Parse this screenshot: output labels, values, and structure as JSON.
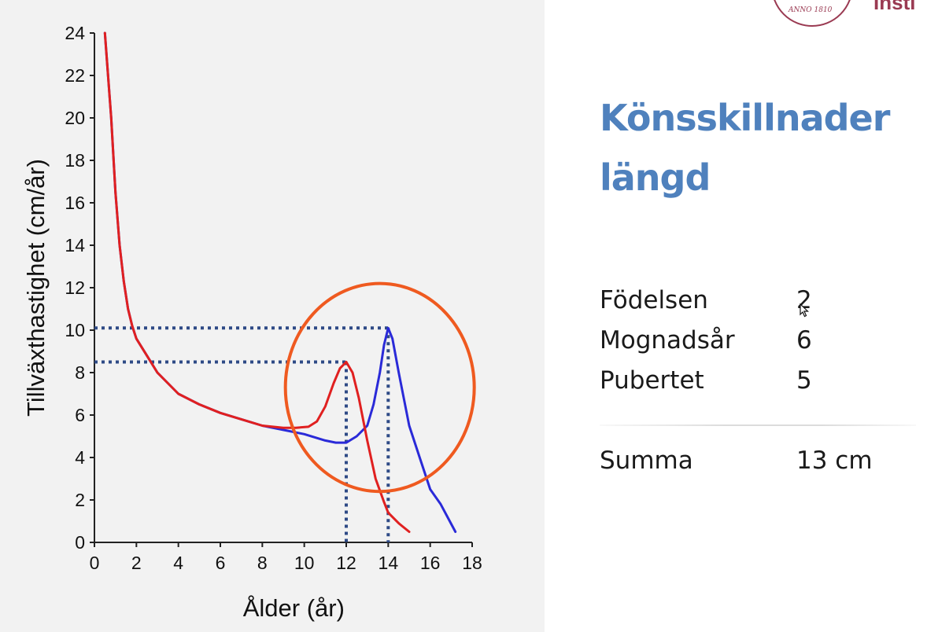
{
  "chart_data": {
    "type": "line",
    "title": "",
    "xlabel": "Ålder (år)",
    "ylabel": "Tillväxthastighet (cm/år)",
    "xlim": [
      0,
      18
    ],
    "ylim": [
      0,
      24
    ],
    "xticks": [
      "0",
      "2",
      "4",
      "6",
      "8",
      "10",
      "12",
      "14",
      "16",
      "18"
    ],
    "yticks": [
      "0",
      "2",
      "4",
      "6",
      "8",
      "10",
      "12",
      "14",
      "16",
      "18",
      "20",
      "22",
      "24"
    ],
    "grid": false,
    "legend": "none",
    "series": [
      {
        "color": "#2a2ad8",
        "x": [
          0.5,
          0.8,
          1.0,
          1.2,
          1.4,
          1.6,
          1.8,
          2.0,
          2.5,
          3.0,
          4.0,
          5.0,
          6.0,
          7.0,
          8.0,
          9.0,
          10.0,
          11.0,
          11.5,
          12.0,
          12.5,
          13.0,
          13.3,
          13.6,
          13.8,
          14.0,
          14.2,
          14.5,
          15.0,
          15.5,
          16.0,
          16.5,
          17.2
        ],
        "y": [
          24.0,
          20.0,
          16.5,
          14.0,
          12.3,
          11.0,
          10.2,
          9.6,
          8.8,
          8.0,
          7.0,
          6.5,
          6.1,
          5.8,
          5.5,
          5.3,
          5.1,
          4.8,
          4.7,
          4.7,
          5.0,
          5.5,
          6.5,
          8.0,
          9.3,
          10.1,
          9.6,
          8.0,
          5.5,
          4.0,
          2.5,
          1.8,
          0.5
        ]
      },
      {
        "color": "#e02020",
        "x": [
          0.5,
          0.8,
          1.0,
          1.2,
          1.4,
          1.6,
          1.8,
          2.0,
          2.5,
          3.0,
          4.0,
          5.0,
          6.0,
          7.0,
          8.0,
          9.0,
          9.6,
          10.2,
          10.6,
          11.0,
          11.4,
          11.7,
          12.0,
          12.3,
          12.6,
          13.0,
          13.4,
          13.8,
          14.0,
          14.5,
          15.0
        ],
        "y": [
          24.0,
          20.0,
          16.5,
          14.0,
          12.3,
          11.0,
          10.2,
          9.6,
          8.8,
          8.0,
          7.0,
          6.5,
          6.1,
          5.8,
          5.5,
          5.4,
          5.4,
          5.45,
          5.7,
          6.4,
          7.5,
          8.2,
          8.5,
          8.0,
          6.8,
          4.8,
          3.0,
          1.9,
          1.4,
          0.9,
          0.5
        ]
      }
    ],
    "annotations": [
      {
        "type": "dotted-crosshair",
        "x": 14,
        "y": 10.1,
        "color": "#2e4a86"
      },
      {
        "type": "dotted-crosshair",
        "x": 12,
        "y": 8.5,
        "color": "#2e4a86"
      },
      {
        "type": "circle",
        "cx": 13.6,
        "cy": 7.3,
        "rx": 4.5,
        "ry": 4.9,
        "color": "#ef5a20"
      }
    ]
  },
  "slide": {
    "title_line1": "Könsskillnader",
    "title_line2": "längd",
    "rows": [
      {
        "label": "Födelsen",
        "value": "2"
      },
      {
        "label": "Mognadsår",
        "value": "6"
      },
      {
        "label": "Pubertet",
        "value": "5"
      }
    ],
    "sum": {
      "label": "Summa",
      "value": "13 cm"
    }
  },
  "logo": {
    "seal_text": "ANNO 1810",
    "word": "Insti"
  }
}
